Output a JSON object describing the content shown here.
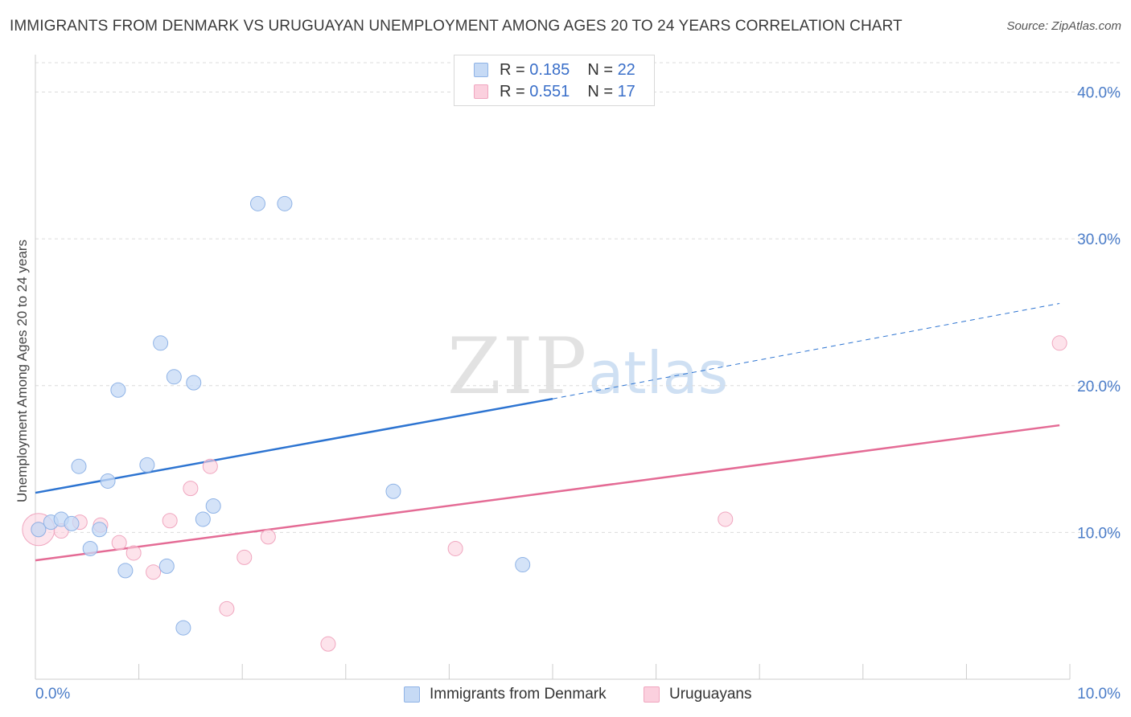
{
  "header": {
    "title": "IMMIGRANTS FROM DENMARK VS URUGUAYAN UNEMPLOYMENT AMONG AGES 20 TO 24 YEARS CORRELATION CHART",
    "source": "Source: ZipAtlas.com"
  },
  "watermark": {
    "zip": "ZIP",
    "atlas": "atlas"
  },
  "legend": {
    "r_label": "R =",
    "n_label": "N =",
    "rows": [
      {
        "r": "0.185",
        "n": "22"
      },
      {
        "r": "0.551",
        "n": "17"
      }
    ]
  },
  "colors": {
    "denmark_fill": "#c6daf5",
    "denmark_stroke": "#8fb3e6",
    "denmark_line": "#2d74d1",
    "uruguay_fill": "#fbd0de",
    "uruguay_stroke": "#f0a6bf",
    "uruguay_line": "#e46b95"
  },
  "chart_data": {
    "type": "scatter",
    "title": "IMMIGRANTS FROM DENMARK VS URUGUAYAN UNEMPLOYMENT AMONG AGES 20 TO 24 YEARS CORRELATION CHART",
    "xlabel": "",
    "ylabel": "Unemployment Among Ages 20 to 24 years",
    "xlim": [
      0,
      10
    ],
    "ylim": [
      0,
      42
    ],
    "x_tick_labels": [
      "0.0%",
      "10.0%"
    ],
    "y_ticks": [
      10,
      20,
      30,
      40
    ],
    "y_tick_labels": [
      "10.0%",
      "20.0%",
      "30.0%",
      "40.0%"
    ],
    "grid": true,
    "series": [
      {
        "name": "Immigrants from Denmark",
        "r": 0.185,
        "n": 22,
        "points": [
          {
            "x": 0.03,
            "y": 10.2
          },
          {
            "x": 0.15,
            "y": 10.7
          },
          {
            "x": 0.25,
            "y": 10.9
          },
          {
            "x": 0.35,
            "y": 10.6
          },
          {
            "x": 0.42,
            "y": 14.5
          },
          {
            "x": 0.53,
            "y": 8.9
          },
          {
            "x": 0.62,
            "y": 10.2
          },
          {
            "x": 0.7,
            "y": 13.5
          },
          {
            "x": 0.8,
            "y": 19.7
          },
          {
            "x": 0.87,
            "y": 7.4
          },
          {
            "x": 1.08,
            "y": 14.6
          },
          {
            "x": 1.21,
            "y": 22.9
          },
          {
            "x": 1.27,
            "y": 7.7
          },
          {
            "x": 1.34,
            "y": 20.6
          },
          {
            "x": 1.43,
            "y": 3.5
          },
          {
            "x": 1.53,
            "y": 20.2
          },
          {
            "x": 1.62,
            "y": 10.9
          },
          {
            "x": 1.72,
            "y": 11.8
          },
          {
            "x": 2.15,
            "y": 32.4
          },
          {
            "x": 2.41,
            "y": 32.4
          },
          {
            "x": 3.46,
            "y": 12.8
          },
          {
            "x": 4.71,
            "y": 7.8
          }
        ],
        "trend": {
          "x0": 0,
          "y0": 12.7,
          "x1": 5.0,
          "y1": 19.1,
          "dashed_to_x": 9.9,
          "dashed_to_y": 25.6
        }
      },
      {
        "name": "Uruguayans",
        "r": 0.551,
        "n": 17,
        "points": [
          {
            "x": 0.03,
            "y": 10.2
          },
          {
            "x": 0.25,
            "y": 10.1
          },
          {
            "x": 0.43,
            "y": 10.7
          },
          {
            "x": 0.63,
            "y": 10.5
          },
          {
            "x": 0.81,
            "y": 9.3
          },
          {
            "x": 0.95,
            "y": 8.6
          },
          {
            "x": 1.14,
            "y": 7.3
          },
          {
            "x": 1.3,
            "y": 10.8
          },
          {
            "x": 1.5,
            "y": 13.0
          },
          {
            "x": 1.69,
            "y": 14.5
          },
          {
            "x": 1.85,
            "y": 4.8
          },
          {
            "x": 2.02,
            "y": 8.3
          },
          {
            "x": 2.25,
            "y": 9.7
          },
          {
            "x": 2.83,
            "y": 2.4
          },
          {
            "x": 4.06,
            "y": 8.9
          },
          {
            "x": 6.67,
            "y": 10.9
          },
          {
            "x": 9.9,
            "y": 22.9
          }
        ],
        "trend": {
          "x0": 0,
          "y0": 8.1,
          "x1": 9.9,
          "y1": 17.3
        }
      }
    ]
  }
}
